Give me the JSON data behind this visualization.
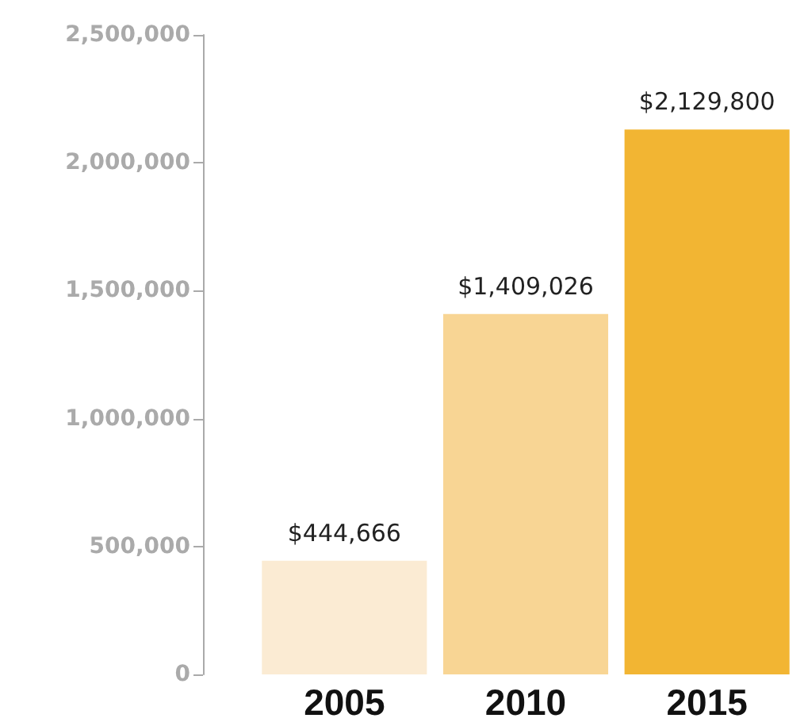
{
  "chart_data": {
    "type": "bar",
    "categories": [
      "2005",
      "2010",
      "2015"
    ],
    "values": [
      444666,
      1409026,
      2129800
    ],
    "colors": [
      "#fbebd3",
      "#f8d594",
      "#f2b533"
    ],
    "value_labels": [
      "$444,666",
      "$1,409,026",
      "$2,129,800"
    ],
    "ylim": [
      0,
      2500000
    ],
    "yticks": [
      0,
      {
        "value": 500000,
        "label": "500,000"
      },
      {
        "value": 1000000,
        "label": "1,000,000"
      },
      {
        "value": 1500000,
        "label": "1,500,000"
      },
      {
        "value": 2000000,
        "label": "2,000,000"
      },
      {
        "value": 2500000,
        "label": "2,500,000"
      }
    ],
    "grid": false
  }
}
